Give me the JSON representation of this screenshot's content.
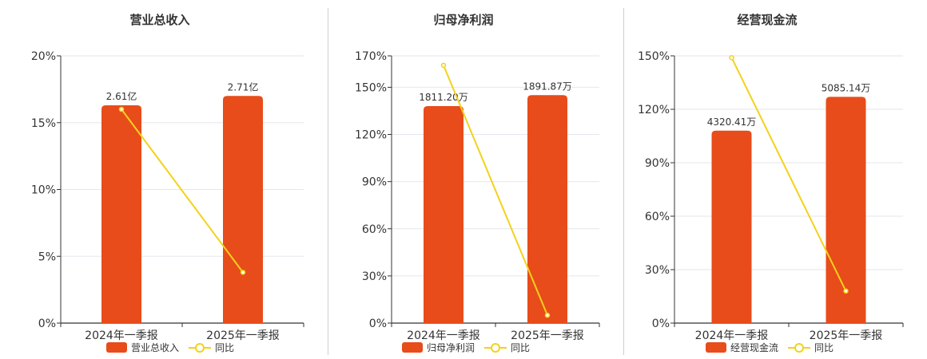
{
  "colors": {
    "bar": "#e84c1a",
    "line": "#f2d21b",
    "grid": "#e6e6ee",
    "axis": "#333333"
  },
  "legend": {
    "line_label": "同比"
  },
  "chart_data": [
    {
      "type": "bar",
      "title": "营业总收入",
      "categories": [
        "2024年一季报",
        "2025年一季报"
      ],
      "series": [
        {
          "name": "营业总收入",
          "kind": "bar",
          "values": [
            16.3,
            17.0
          ],
          "labels": [
            "2.61亿",
            "2.71亿"
          ]
        },
        {
          "name": "同比",
          "kind": "line",
          "values": [
            16.0,
            3.8
          ]
        }
      ],
      "yticks": [
        "0%",
        "5%",
        "10%",
        "15%",
        "20%"
      ],
      "ylim": [
        0,
        20
      ],
      "grid": true,
      "legend_position": "bottom"
    },
    {
      "type": "bar",
      "title": "归母净利润",
      "categories": [
        "2024年一季报",
        "2025年一季报"
      ],
      "series": [
        {
          "name": "归母净利润",
          "kind": "bar",
          "values": [
            138,
            145
          ],
          "labels": [
            "1811.20万",
            "1891.87万"
          ]
        },
        {
          "name": "同比",
          "kind": "line",
          "values": [
            164,
            5
          ]
        }
      ],
      "yticks": [
        "0%",
        "30%",
        "60%",
        "90%",
        "120%",
        "150%",
        "170%"
      ],
      "ylim": [
        0,
        170
      ],
      "grid": true,
      "legend_position": "bottom"
    },
    {
      "type": "bar",
      "title": "经营现金流",
      "categories": [
        "2024年一季报",
        "2025年一季报"
      ],
      "series": [
        {
          "name": "经营现金流",
          "kind": "bar",
          "values": [
            108,
            127
          ],
          "labels": [
            "4320.41万",
            "5085.14万"
          ]
        },
        {
          "name": "同比",
          "kind": "line",
          "values": [
            149,
            18
          ]
        }
      ],
      "yticks": [
        "0%",
        "30%",
        "60%",
        "90%",
        "120%",
        "150%"
      ],
      "ylim": [
        0,
        150
      ],
      "grid": true,
      "legend_position": "bottom"
    }
  ]
}
